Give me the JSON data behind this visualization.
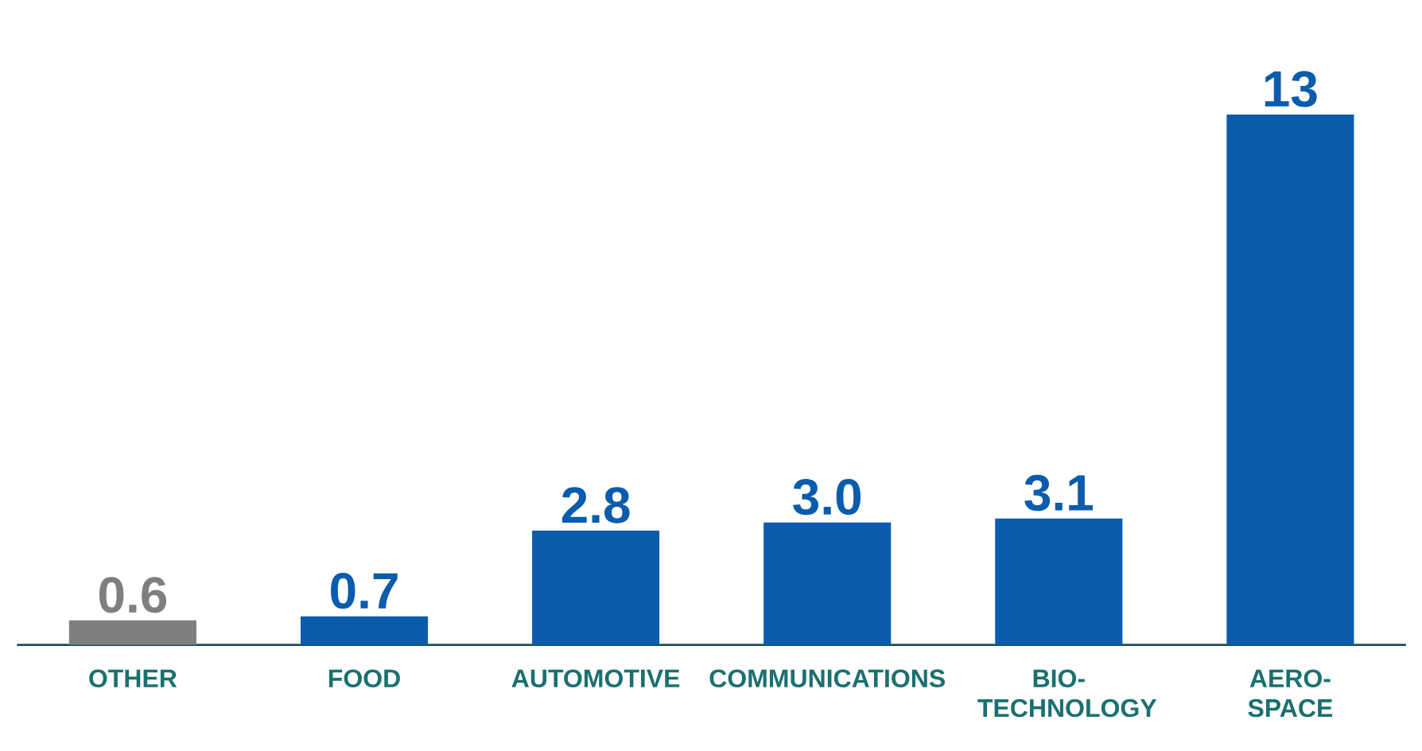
{
  "chart_data": {
    "type": "bar",
    "categories": [
      "OTHER",
      "FOOD",
      "AUTOMOTIVE",
      "COMMUNICATIONS",
      "BIO-TECHNOLOGY",
      "AERO-SPACE"
    ],
    "values": [
      0.6,
      0.7,
      2.8,
      3.0,
      3.1,
      13
    ],
    "value_labels": [
      "0.6",
      "0.7",
      "2.8",
      "3.0",
      "3.1",
      "13"
    ],
    "colors": [
      "#7f7f7f",
      "#0b5cad",
      "#0b5cad",
      "#0b5cad",
      "#0b5cad",
      "#0b5cad"
    ],
    "tick_labels": "x"
  }
}
